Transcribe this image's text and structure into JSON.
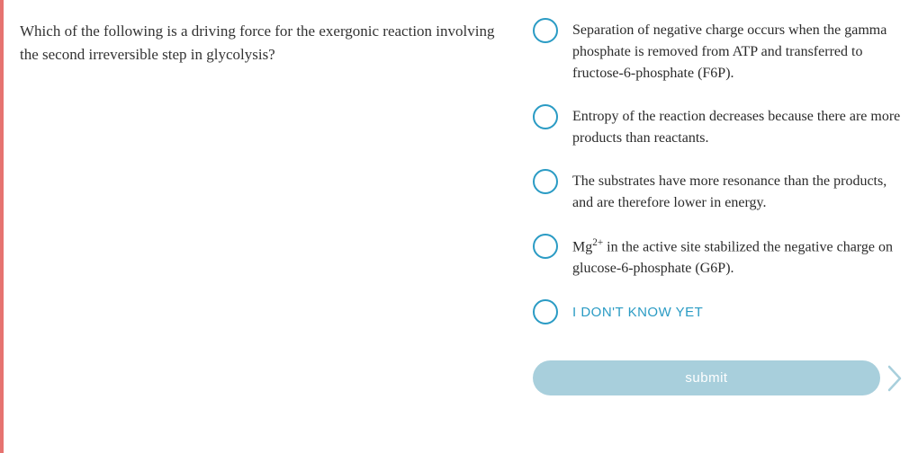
{
  "colors": {
    "left_border": "#e67370",
    "radio_border": "#2a9bc4",
    "submit_bg": "#a8cfdc",
    "submit_text": "#ffffff",
    "body_text": "#333333",
    "option_text": "#2b2b2b",
    "idk_text": "#2a9bc4",
    "arrow_stroke": "#a8cfdc"
  },
  "question": {
    "text": "Which of the following is a driving force for the exergonic reaction involving the second irreversible step in glycolysis?"
  },
  "options": [
    {
      "text": "Separation of negative charge occurs when the gamma phosphate is removed from ATP and transferred to fructose-6-phosphate (F6P)."
    },
    {
      "text": "Entropy of the reaction decreases because there are more products than reactants."
    },
    {
      "text": "The substrates have more resonance than the products, and are therefore lower in energy."
    },
    {
      "text_html": "Mg<sup>2+</sup> in the active site stabilized the negative charge on glucose-6-phosphate (G6P)."
    },
    {
      "text": "I DON'T KNOW YET",
      "idk": true
    }
  ],
  "submit": {
    "label": "submit"
  }
}
